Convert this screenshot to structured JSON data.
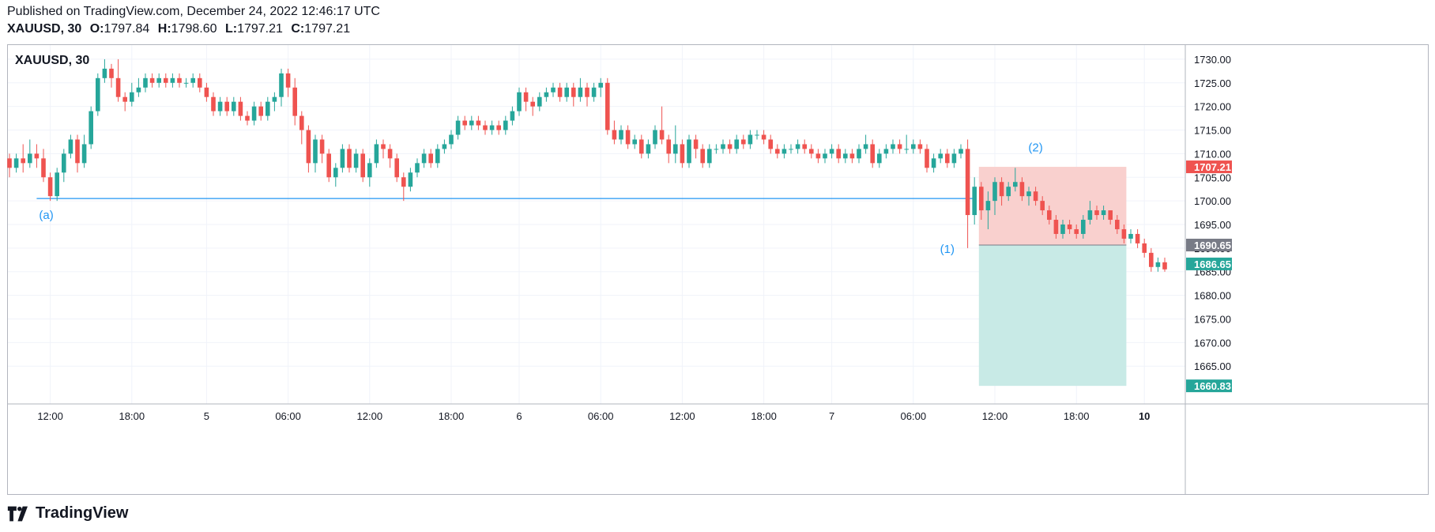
{
  "header": {
    "published": "Published on TradingView.com, December 24, 2022 12:46:17 UTC",
    "symbol_interval": "XAUUSD, 30",
    "o_label": "O:",
    "o_value": "1797.84",
    "h_label": "H:",
    "h_value": "1798.60",
    "l_label": "L:",
    "l_value": "1797.21",
    "c_label": "C:",
    "c_value": "1797.21"
  },
  "chart_title": "XAUUSD, 30",
  "footer": {
    "brand": "TradingView"
  },
  "colors": {
    "up": "#26a69a",
    "down": "#ef5350",
    "line": "#2196f3",
    "loss_zone": "#f9d0ce",
    "profit_zone": "#c8eae6",
    "grid": "#f0f3fa",
    "axis_text": "#131722",
    "annotation": "#2196f3"
  },
  "chart_data": {
    "type": "candlestick",
    "title": "XAUUSD, 30",
    "ylim": [
      1657,
      1733
    ],
    "y_ticks": [
      1665,
      1670,
      1675,
      1680,
      1685,
      1690,
      1695,
      1700,
      1705,
      1710,
      1715,
      1720,
      1725,
      1730
    ],
    "y_tick_labels": [
      "1665.00",
      "1670.00",
      "1675.00",
      "1680.00",
      "1685.00",
      "1690.00",
      "1695.00",
      "1700.00",
      "1705.00",
      "1710.00",
      "1715.00",
      "1720.00",
      "1725.00",
      "1730.00"
    ],
    "x_labels": [
      {
        "label": "12:00",
        "i": 6
      },
      {
        "label": "18:00",
        "i": 18
      },
      {
        "label": "5",
        "i": 29
      },
      {
        "label": "06:00",
        "i": 41
      },
      {
        "label": "12:00",
        "i": 53
      },
      {
        "label": "18:00",
        "i": 65
      },
      {
        "label": "6",
        "i": 75
      },
      {
        "label": "06:00",
        "i": 87
      },
      {
        "label": "12:00",
        "i": 99
      },
      {
        "label": "18:00",
        "i": 111
      },
      {
        "label": "7",
        "i": 121
      },
      {
        "label": "06:00",
        "i": 133
      },
      {
        "label": "12:00",
        "i": 145
      },
      {
        "label": "18:00",
        "i": 157
      },
      {
        "label": "10",
        "i": 167
      }
    ],
    "candles": [
      [
        1709,
        1707,
        1710,
        1705
      ],
      [
        1707,
        1709,
        1710,
        1706
      ],
      [
        1709,
        1708,
        1712,
        1706
      ],
      [
        1708,
        1710,
        1713,
        1707
      ],
      [
        1710,
        1709,
        1712,
        1707
      ],
      [
        1709,
        1705,
        1711,
        1704
      ],
      [
        1705,
        1701,
        1706,
        1700
      ],
      [
        1701,
        1706,
        1707,
        1700
      ],
      [
        1706,
        1710,
        1711,
        1704
      ],
      [
        1710,
        1713,
        1714,
        1709
      ],
      [
        1713,
        1708,
        1714,
        1706
      ],
      [
        1708,
        1712,
        1714,
        1707
      ],
      [
        1712,
        1719,
        1720,
        1711
      ],
      [
        1719,
        1726,
        1727,
        1718
      ],
      [
        1726,
        1728,
        1730,
        1725
      ],
      [
        1728,
        1726,
        1729,
        1724
      ],
      [
        1726,
        1722,
        1730,
        1721
      ],
      [
        1722,
        1721,
        1723,
        1719
      ],
      [
        1721,
        1723,
        1725,
        1720
      ],
      [
        1723,
        1724,
        1726,
        1722
      ],
      [
        1724,
        1726,
        1727,
        1723
      ],
      [
        1726,
        1725,
        1727,
        1724
      ],
      [
        1725,
        1726,
        1727,
        1724
      ],
      [
        1726,
        1725,
        1727,
        1724
      ],
      [
        1725,
        1726,
        1727,
        1724
      ],
      [
        1726,
        1725,
        1727,
        1724
      ],
      [
        1725,
        1725,
        1726,
        1724
      ],
      [
        1725,
        1726,
        1727,
        1724
      ],
      [
        1726,
        1724,
        1727,
        1723
      ],
      [
        1724,
        1722,
        1725,
        1721
      ],
      [
        1722,
        1719,
        1723,
        1718
      ],
      [
        1719,
        1721,
        1722,
        1718
      ],
      [
        1721,
        1719,
        1722,
        1718
      ],
      [
        1719,
        1721,
        1722,
        1718
      ],
      [
        1721,
        1718,
        1722,
        1717
      ],
      [
        1718,
        1717,
        1719,
        1716
      ],
      [
        1717,
        1720,
        1721,
        1716
      ],
      [
        1720,
        1718,
        1721,
        1717
      ],
      [
        1718,
        1721,
        1722,
        1717
      ],
      [
        1721,
        1722,
        1723,
        1719
      ],
      [
        1722,
        1727,
        1728,
        1720
      ],
      [
        1727,
        1724,
        1728,
        1722
      ],
      [
        1724,
        1718,
        1726,
        1716
      ],
      [
        1718,
        1715,
        1719,
        1712
      ],
      [
        1715,
        1708,
        1716,
        1706
      ],
      [
        1708,
        1713,
        1714,
        1706
      ],
      [
        1713,
        1710,
        1714,
        1708
      ],
      [
        1710,
        1705,
        1711,
        1704
      ],
      [
        1705,
        1707,
        1708,
        1703
      ],
      [
        1707,
        1711,
        1712,
        1706
      ],
      [
        1711,
        1707,
        1712,
        1706
      ],
      [
        1707,
        1710,
        1711,
        1706
      ],
      [
        1710,
        1705,
        1711,
        1704
      ],
      [
        1705,
        1708,
        1709,
        1703
      ],
      [
        1708,
        1712,
        1713,
        1707
      ],
      [
        1712,
        1711,
        1713,
        1709
      ],
      [
        1711,
        1709,
        1712,
        1707
      ],
      [
        1709,
        1705,
        1710,
        1704
      ],
      [
        1705,
        1703,
        1706,
        1700
      ],
      [
        1703,
        1706,
        1707,
        1702
      ],
      [
        1706,
        1708,
        1709,
        1705
      ],
      [
        1708,
        1710,
        1711,
        1707
      ],
      [
        1710,
        1708,
        1711,
        1707
      ],
      [
        1708,
        1711,
        1712,
        1707
      ],
      [
        1711,
        1712,
        1713,
        1710
      ],
      [
        1712,
        1714,
        1715,
        1711
      ],
      [
        1714,
        1717,
        1718,
        1713
      ],
      [
        1717,
        1716,
        1718,
        1715
      ],
      [
        1716,
        1717,
        1718,
        1715
      ],
      [
        1717,
        1716,
        1718,
        1715
      ],
      [
        1716,
        1715,
        1717,
        1714
      ],
      [
        1715,
        1716,
        1717,
        1714
      ],
      [
        1716,
        1715,
        1717,
        1714
      ],
      [
        1715,
        1717,
        1718,
        1714
      ],
      [
        1717,
        1719,
        1720,
        1716
      ],
      [
        1719,
        1723,
        1724,
        1718
      ],
      [
        1723,
        1721,
        1724,
        1719
      ],
      [
        1721,
        1720,
        1722,
        1718
      ],
      [
        1720,
        1722,
        1723,
        1719
      ],
      [
        1722,
        1723,
        1724,
        1721
      ],
      [
        1723,
        1724,
        1725,
        1722
      ],
      [
        1724,
        1722,
        1725,
        1721
      ],
      [
        1722,
        1724,
        1725,
        1721
      ],
      [
        1724,
        1722,
        1725,
        1720
      ],
      [
        1722,
        1724,
        1726,
        1721
      ],
      [
        1724,
        1722,
        1725,
        1720
      ],
      [
        1722,
        1724,
        1725,
        1721
      ],
      [
        1724,
        1725,
        1726,
        1722
      ],
      [
        1725,
        1715,
        1726,
        1714
      ],
      [
        1715,
        1713,
        1717,
        1712
      ],
      [
        1713,
        1715,
        1716,
        1712
      ],
      [
        1715,
        1712,
        1716,
        1711
      ],
      [
        1712,
        1713,
        1714,
        1711
      ],
      [
        1713,
        1710,
        1714,
        1709
      ],
      [
        1710,
        1712,
        1713,
        1709
      ],
      [
        1712,
        1715,
        1716,
        1711
      ],
      [
        1715,
        1713,
        1720,
        1712
      ],
      [
        1713,
        1710,
        1714,
        1708
      ],
      [
        1710,
        1712,
        1716,
        1708
      ],
      [
        1712,
        1708,
        1713,
        1707
      ],
      [
        1708,
        1713,
        1714,
        1707
      ],
      [
        1713,
        1711,
        1714,
        1709
      ],
      [
        1711,
        1708,
        1712,
        1707
      ],
      [
        1708,
        1711,
        1712,
        1707
      ],
      [
        1711,
        1711,
        1712,
        1710
      ],
      [
        1711,
        1712,
        1713,
        1710
      ],
      [
        1712,
        1711,
        1713,
        1710
      ],
      [
        1711,
        1713,
        1714,
        1710
      ],
      [
        1713,
        1712,
        1714,
        1711
      ],
      [
        1712,
        1714,
        1715,
        1711
      ],
      [
        1714,
        1714,
        1715,
        1713
      ],
      [
        1714,
        1713,
        1715,
        1712
      ],
      [
        1713,
        1711,
        1714,
        1710
      ],
      [
        1711,
        1710,
        1712,
        1709
      ],
      [
        1710,
        1711,
        1712,
        1709
      ],
      [
        1711,
        1711,
        1712,
        1710
      ],
      [
        1711,
        1712,
        1713,
        1710
      ],
      [
        1712,
        1711,
        1713,
        1710
      ],
      [
        1711,
        1710,
        1712,
        1709
      ],
      [
        1710,
        1709,
        1711,
        1708
      ],
      [
        1709,
        1710,
        1711,
        1708
      ],
      [
        1710,
        1711,
        1712,
        1709
      ],
      [
        1711,
        1709,
        1712,
        1708
      ],
      [
        1709,
        1710,
        1711,
        1708
      ],
      [
        1710,
        1709,
        1711,
        1708
      ],
      [
        1709,
        1711,
        1712,
        1708
      ],
      [
        1711,
        1712,
        1714,
        1710
      ],
      [
        1712,
        1708,
        1713,
        1707
      ],
      [
        1708,
        1710,
        1711,
        1707
      ],
      [
        1710,
        1711,
        1712,
        1709
      ],
      [
        1711,
        1712,
        1713,
        1710
      ],
      [
        1712,
        1711,
        1713,
        1710
      ],
      [
        1711,
        1711,
        1714,
        1710
      ],
      [
        1711,
        1712,
        1713,
        1710
      ],
      [
        1712,
        1711,
        1713,
        1710
      ],
      [
        1711,
        1707,
        1712,
        1706
      ],
      [
        1707,
        1709,
        1710,
        1706
      ],
      [
        1709,
        1710,
        1711,
        1708
      ],
      [
        1710,
        1708,
        1711,
        1707
      ],
      [
        1708,
        1710,
        1711,
        1707
      ],
      [
        1710,
        1711,
        1712,
        1709
      ],
      [
        1711,
        1697,
        1713,
        1690
      ],
      [
        1697,
        1703,
        1705,
        1695
      ],
      [
        1703,
        1698,
        1704,
        1696
      ],
      [
        1698,
        1700,
        1702,
        1694
      ],
      [
        1700,
        1704,
        1705,
        1697
      ],
      [
        1704,
        1701,
        1705,
        1699
      ],
      [
        1701,
        1703,
        1704,
        1700
      ],
      [
        1703,
        1704,
        1707,
        1702
      ],
      [
        1704,
        1701,
        1705,
        1700
      ],
      [
        1701,
        1702,
        1703,
        1699
      ],
      [
        1702,
        1700,
        1703,
        1699
      ],
      [
        1700,
        1698,
        1701,
        1697
      ],
      [
        1698,
        1696,
        1699,
        1695
      ],
      [
        1696,
        1693,
        1697,
        1692
      ],
      [
        1693,
        1695,
        1696,
        1692
      ],
      [
        1695,
        1694,
        1696,
        1693
      ],
      [
        1694,
        1693,
        1695,
        1692
      ],
      [
        1693,
        1696,
        1697,
        1692
      ],
      [
        1696,
        1698,
        1700,
        1695
      ],
      [
        1698,
        1697,
        1699,
        1696
      ],
      [
        1697,
        1698,
        1699,
        1696
      ],
      [
        1698,
        1696,
        1698,
        1695
      ],
      [
        1696,
        1694,
        1697,
        1693
      ],
      [
        1694,
        1692,
        1695,
        1691
      ],
      [
        1692,
        1693,
        1694,
        1691
      ],
      [
        1693,
        1691,
        1694,
        1690
      ],
      [
        1691,
        1689,
        1692,
        1688
      ],
      [
        1689,
        1686,
        1690,
        1685
      ],
      [
        1686,
        1687,
        1688,
        1685
      ],
      [
        1687,
        1685.5,
        1688,
        1685
      ]
    ],
    "support_line": {
      "value": 1700.5,
      "from_i": 4,
      "to_i": 142,
      "label": "(a)"
    },
    "position": {
      "entry": 1690.65,
      "stop": 1707.21,
      "target": 1660.83,
      "from_i": 143,
      "to_i": 164
    },
    "annotations": [
      {
        "label": "(1)",
        "i": 138,
        "y": 1689
      },
      {
        "label": "(2)",
        "i": 151,
        "y": 1710.5
      }
    ],
    "price_labels": [
      {
        "value": "1707.21",
        "y": 1707.21,
        "color": "#ef5350"
      },
      {
        "value": "1690.65",
        "y": 1690.65,
        "color": "#787b86"
      },
      {
        "value": "1686.65",
        "y": 1686.65,
        "color": "#26a69a"
      },
      {
        "value": "1660.83",
        "y": 1660.83,
        "color": "#26a69a"
      }
    ]
  }
}
